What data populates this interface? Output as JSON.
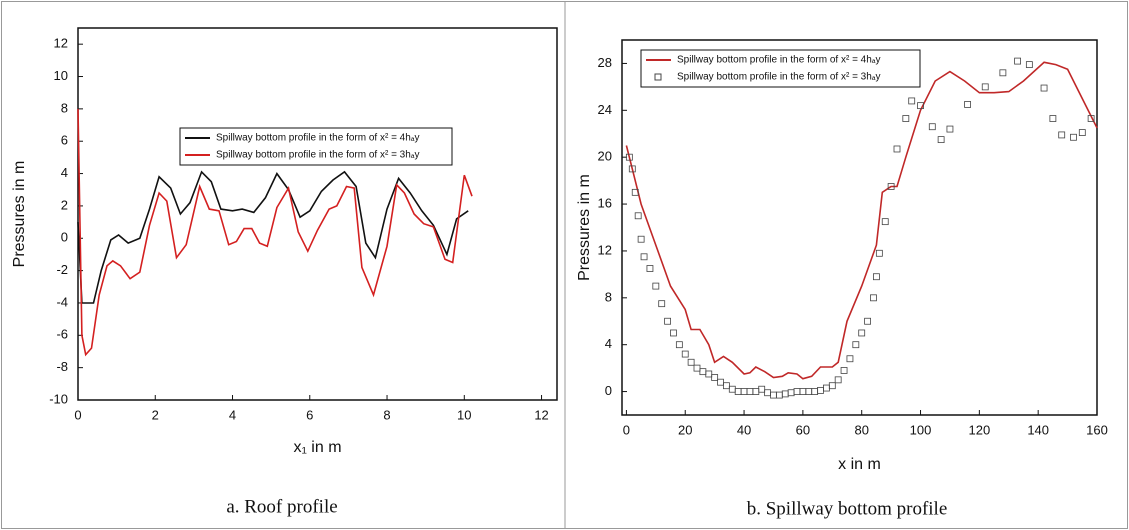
{
  "chart_data": [
    {
      "type": "line",
      "xlabel": "x₁ in m",
      "ylabel": "Pressures in m",
      "caption": "a. Roof profile",
      "xlim": [
        0,
        12.4
      ],
      "ylim": [
        -10,
        13
      ],
      "xticks": [
        0,
        2,
        4,
        6,
        8,
        10,
        12
      ],
      "yticks": [
        -10,
        -8,
        -6,
        -4,
        -2,
        0,
        2,
        4,
        6,
        8,
        10,
        12
      ],
      "legend": "upper-center",
      "series": [
        {
          "name": "Spillway bottom profile in the form of x² = 4hₐy",
          "color": "#111111",
          "type": "line",
          "x": [
            0,
            0.1,
            0.4,
            0.6,
            0.85,
            1.05,
            1.3,
            1.6,
            1.85,
            2.1,
            2.4,
            2.65,
            2.9,
            3.2,
            3.45,
            3.7,
            4.0,
            4.25,
            4.55,
            4.85,
            5.15,
            5.45,
            5.75,
            6.0,
            6.3,
            6.6,
            6.9,
            7.2,
            7.45,
            7.7,
            8.0,
            8.3,
            8.6,
            8.9,
            9.2,
            9.55,
            9.8,
            10.1
          ],
          "values": [
            1,
            -4,
            -4,
            -2,
            -0.1,
            0.2,
            -0.3,
            0,
            1.8,
            3.8,
            3.1,
            1.5,
            2.2,
            4.1,
            3.5,
            1.8,
            1.7,
            1.8,
            1.6,
            2.5,
            4.0,
            3.0,
            1.3,
            1.7,
            2.9,
            3.6,
            4.1,
            3.2,
            -0.3,
            -1.2,
            1.8,
            3.7,
            2.8,
            1.7,
            0.8,
            -1,
            1.2,
            1.7
          ]
        },
        {
          "name": "Spillway bottom profile in the form of x² = 3hₐy",
          "color": "#d42020",
          "type": "line",
          "x": [
            0,
            0.1,
            0.2,
            0.35,
            0.55,
            0.75,
            0.9,
            1.1,
            1.35,
            1.6,
            1.85,
            2.1,
            2.3,
            2.55,
            2.8,
            3.15,
            3.4,
            3.65,
            3.9,
            4.1,
            4.3,
            4.5,
            4.7,
            4.9,
            5.15,
            5.45,
            5.7,
            5.95,
            6.2,
            6.5,
            6.7,
            6.95,
            7.15,
            7.35,
            7.65,
            8.0,
            8.25,
            8.45,
            8.7,
            8.95,
            9.2,
            9.5,
            9.7,
            10.0,
            10.2
          ],
          "values": [
            8,
            -6,
            -7.2,
            -6.8,
            -3.5,
            -1.7,
            -1.4,
            -1.7,
            -2.5,
            -2.1,
            0.8,
            2.8,
            2.3,
            -1.2,
            -0.4,
            3.2,
            1.8,
            1.7,
            -0.4,
            -0.2,
            0.6,
            0.6,
            -0.3,
            -0.5,
            1.9,
            3.1,
            0.4,
            -0.8,
            0.5,
            1.8,
            2,
            3.2,
            3.1,
            -1.8,
            -3.5,
            -0.5,
            3.3,
            2.8,
            1.5,
            0.9,
            0.7,
            -1.3,
            -1.5,
            3.9,
            2.6
          ]
        }
      ]
    },
    {
      "type": "line",
      "xlabel": "x in m",
      "ylabel": "Pressures in m",
      "caption": "b. Spillway bottom profile",
      "xlim": [
        -1.5,
        160
      ],
      "ylim": [
        -2,
        30
      ],
      "xticks": [
        0,
        20,
        40,
        60,
        80,
        100,
        120,
        140,
        160
      ],
      "yticks": [
        0,
        4,
        8,
        12,
        16,
        20,
        24,
        28
      ],
      "legend": "upper-left",
      "series": [
        {
          "name": "Spillway bottom profile in the form of x² = 4hₐy",
          "color": "#c02828",
          "type": "line",
          "x": [
            0,
            2,
            5,
            10,
            15,
            20,
            22,
            25,
            28,
            30,
            33,
            36,
            40,
            42,
            44,
            47,
            50,
            53,
            55,
            58,
            60,
            63,
            66,
            70,
            72,
            75,
            80,
            85,
            87,
            90,
            92,
            95,
            100,
            105,
            110,
            115,
            120,
            125,
            130,
            135,
            142,
            146,
            150,
            155,
            160
          ],
          "values": [
            21,
            19,
            16,
            12.5,
            9,
            7,
            5.3,
            5.3,
            4,
            2.5,
            3,
            2.5,
            1.5,
            1.6,
            2.1,
            1.7,
            1.2,
            1.3,
            1.6,
            1.5,
            1.1,
            1.3,
            2.1,
            2.1,
            2.5,
            6,
            9,
            12.5,
            17,
            17.5,
            17.5,
            20,
            24,
            26.5,
            27.3,
            26.5,
            25.5,
            25.5,
            25.6,
            26.5,
            28.1,
            27.9,
            27.5,
            25,
            22.5
          ]
        },
        {
          "name": "Spillway bottom profile in the form of x² = 3hₐy",
          "color": "#444444",
          "type": "scatter",
          "x": [
            1,
            2,
            3,
            4,
            5,
            6,
            8,
            10,
            12,
            14,
            16,
            18,
            20,
            22,
            24,
            26,
            28,
            30,
            32,
            34,
            36,
            38,
            40,
            42,
            44,
            46,
            48,
            50,
            52,
            54,
            56,
            58,
            60,
            62,
            64,
            66,
            68,
            70,
            72,
            74,
            76,
            78,
            80,
            82,
            84,
            85,
            86,
            88,
            90,
            92,
            95,
            97,
            100,
            104,
            107,
            110,
            116,
            122,
            128,
            133,
            137,
            142,
            145,
            148,
            152,
            155,
            158
          ],
          "values": [
            20,
            19,
            17,
            15,
            13,
            11.5,
            10.5,
            9,
            7.5,
            6,
            5,
            4,
            3.2,
            2.5,
            2,
            1.7,
            1.5,
            1.2,
            0.8,
            0.5,
            0.2,
            0,
            0,
            0,
            0,
            0.2,
            -0.1,
            -0.3,
            -0.3,
            -0.2,
            -0.1,
            0,
            0,
            0,
            0,
            0.1,
            0.3,
            0.5,
            1,
            1.8,
            2.8,
            4,
            5,
            6,
            8,
            9.8,
            11.8,
            14.5,
            17.5,
            20.7,
            23.3,
            24.8,
            24.4,
            22.6,
            21.5,
            22.4,
            24.5,
            26,
            27.2,
            28.2,
            27.9,
            25.9,
            23.3,
            21.9,
            21.7,
            22.1,
            23.3
          ]
        }
      ]
    }
  ]
}
